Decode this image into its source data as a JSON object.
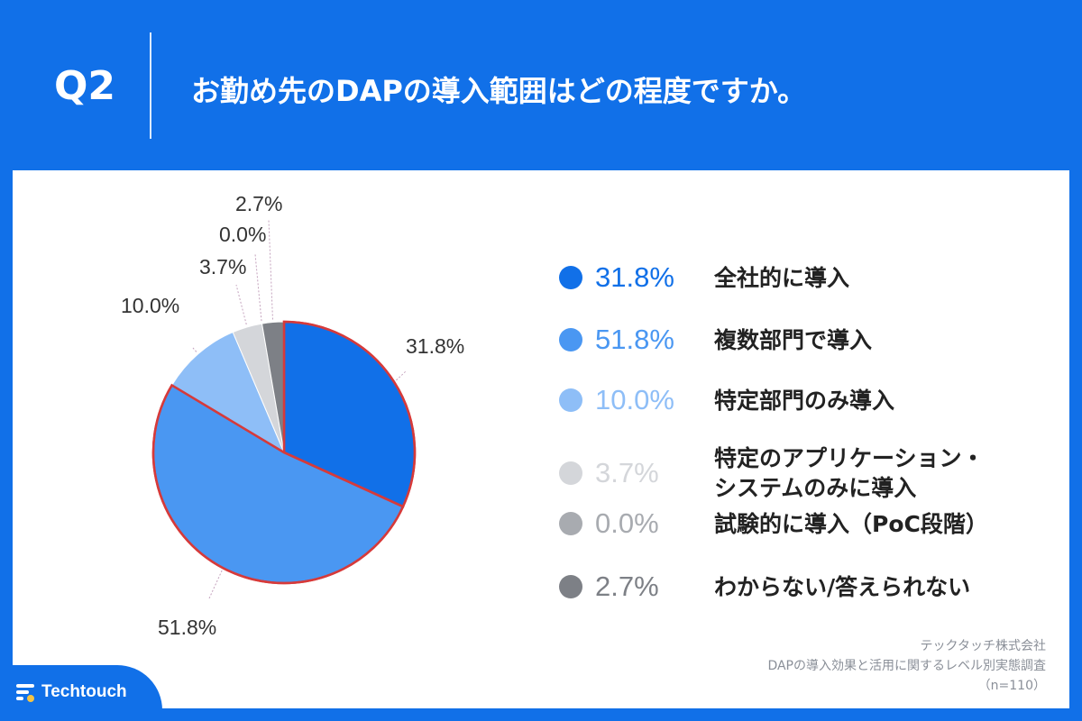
{
  "header": {
    "question_number": "Q2",
    "question_text": "お勤め先のDAPの導入範囲はどの程度ですか。"
  },
  "chart_data": {
    "type": "pie",
    "title": "",
    "unit": "%",
    "series": [
      {
        "value": 31.8,
        "pct_label": "31.8%",
        "label_lines": [
          "全社的に導入"
        ],
        "color": "#1170e8"
      },
      {
        "value": 51.8,
        "pct_label": "51.8%",
        "label_lines": [
          "複数部門で導入"
        ],
        "color": "#4a97f2"
      },
      {
        "value": 10.0,
        "pct_label": "10.0%",
        "label_lines": [
          "特定部門のみ導入"
        ],
        "color": "#8ebef7"
      },
      {
        "value": 3.7,
        "pct_label": "3.7%",
        "label_lines": [
          "特定のアプリケーション・",
          "システムのみに導入"
        ],
        "color": "#d4d6da"
      },
      {
        "value": 0.0,
        "pct_label": "0.0%",
        "label_lines": [
          "試験的に導入（PoC段階）"
        ],
        "color": "#a8abb0"
      },
      {
        "value": 2.7,
        "pct_label": "2.7%",
        "label_lines": [
          "わからない/答えられない"
        ],
        "color": "#7d8086"
      }
    ],
    "highlight_color": "#d63a3a"
  },
  "source": {
    "company": "テックタッチ株式会社",
    "survey": "DAPの導入効果と活用に関するレベル別実態調査",
    "sample": "（n=110）"
  },
  "logo": {
    "text": "Techtouch"
  }
}
